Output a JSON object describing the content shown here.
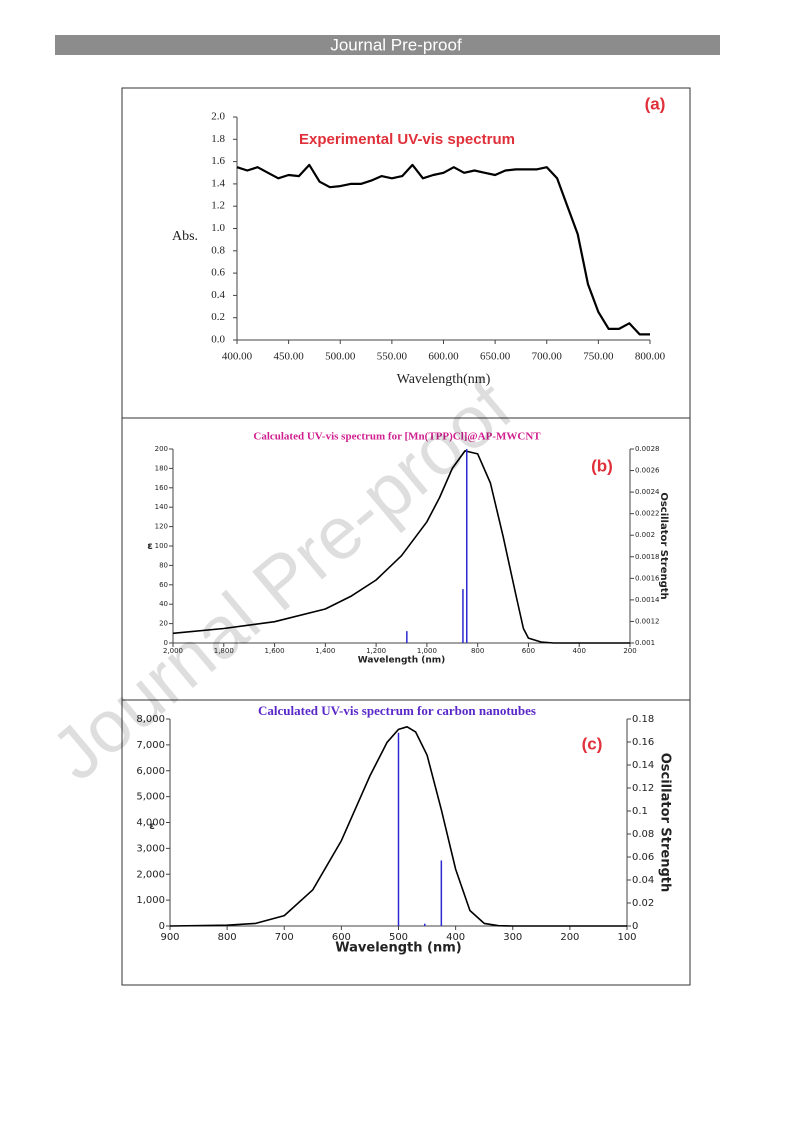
{
  "header": {
    "title": "Journal Pre-proof"
  },
  "watermark": "Journal Pre-proof",
  "chart_data": [
    {
      "type": "line",
      "title": "Experimental UV-vis spectrum",
      "title_color": "#e0303a",
      "panel_label": "(a)",
      "panel_label_color": "#e0303a",
      "x_label": "Wavelength(nm)",
      "y_label": "Abs.",
      "xlim": [
        400,
        800
      ],
      "xticks": [
        {
          "value": 400,
          "label": "400.00"
        },
        {
          "value": 450,
          "label": "450.00"
        },
        {
          "value": 500,
          "label": "500.00"
        },
        {
          "value": 550,
          "label": "550.00"
        },
        {
          "value": 600,
          "label": "600.00"
        },
        {
          "value": 650,
          "label": "650.00"
        },
        {
          "value": 700,
          "label": "700.00"
        },
        {
          "value": 750,
          "label": "750.00"
        },
        {
          "value": 800,
          "label": "800.00"
        }
      ],
      "ylim": [
        0,
        2
      ],
      "yticks": [
        {
          "value": 0,
          "label": "0.0"
        },
        0.2,
        0.4,
        0.6,
        0.8,
        {
          "value": 1,
          "label": "1.0"
        },
        1.2,
        1.4,
        1.6,
        1.8,
        {
          "value": 2,
          "label": "2.0"
        }
      ],
      "series": [
        {
          "color": "#000000",
          "style": "line",
          "x": [
            400,
            410,
            420,
            430,
            440,
            450,
            460,
            470,
            480,
            490,
            500,
            510,
            520,
            530,
            540,
            550,
            560,
            570,
            580,
            590,
            600,
            610,
            620,
            630,
            640,
            650,
            660,
            670,
            680,
            690,
            700,
            710,
            720,
            730,
            740,
            750,
            760,
            770,
            780,
            790,
            800
          ],
          "values": [
            1.55,
            1.52,
            1.55,
            1.5,
            1.45,
            1.48,
            1.47,
            1.57,
            1.42,
            1.37,
            1.38,
            1.4,
            1.4,
            1.43,
            1.47,
            1.45,
            1.47,
            1.57,
            1.45,
            1.48,
            1.5,
            1.55,
            1.5,
            1.52,
            1.5,
            1.48,
            1.52,
            1.53,
            1.53,
            1.53,
            1.55,
            1.45,
            1.2,
            0.95,
            0.5,
            0.25,
            0.1,
            0.1,
            0.15,
            0.05,
            0.05
          ]
        }
      ]
    },
    {
      "type": "line",
      "title": "Calculated UV-vis spectrum for [Mn(TPP)Cl]@AP-MWCNT",
      "title_color": "#d0208f",
      "panel_label": "(b)",
      "panel_label_color": "#e0303a",
      "x_label": "Wavelength (nm)",
      "y_label": "ε",
      "y2_label": "Oscillator Strength",
      "xlim": [
        2000,
        200
      ],
      "xticks": [
        {
          "value": 2000,
          "label": "2,000"
        },
        {
          "value": 1800,
          "label": "1,800"
        },
        {
          "value": 1600,
          "label": "1,600"
        },
        {
          "value": 1400,
          "label": "1,400"
        },
        {
          "value": 1200,
          "label": "1,200"
        },
        {
          "value": 1000,
          "label": "1,000"
        },
        800,
        600,
        400,
        200
      ],
      "ylim": [
        0,
        200
      ],
      "yticks": [
        0,
        20,
        40,
        60,
        80,
        100,
        120,
        140,
        160,
        180,
        200
      ],
      "y2lim": [
        0.001,
        0.0028
      ],
      "y2ticks": [
        0.001,
        0.0012,
        0.0014,
        0.0016,
        0.0018,
        0.002,
        0.0022,
        0.0024,
        0.0026,
        0.0028
      ],
      "series": [
        {
          "color": "#000000",
          "style": "line",
          "x": [
            2000,
            1800,
            1600,
            1400,
            1300,
            1200,
            1100,
            1000,
            950,
            900,
            850,
            800,
            750,
            700,
            650,
            620,
            600,
            550,
            500,
            400,
            200
          ],
          "values": [
            10,
            15,
            22,
            35,
            48,
            65,
            90,
            125,
            150,
            180,
            198,
            195,
            165,
            110,
            50,
            15,
            5,
            1,
            0,
            0,
            0
          ]
        },
        {
          "color": "#2a2ad0",
          "style": "stick",
          "axis": "y2",
          "x": [
            1079,
            858,
            843
          ],
          "values": [
            0.00111,
            0.0015,
            0.0028
          ]
        }
      ]
    },
    {
      "type": "line",
      "title": "Calculated UV-vis spectrum for carbon nanotubes",
      "title_color": "#5a28c8",
      "panel_label": "(c)",
      "panel_label_color": "#e0303a",
      "x_label": "Wavelength (nm)",
      "y_label": "ε",
      "y2_label": "Oscillator Strength",
      "xlim": [
        900,
        100
      ],
      "xticks": [
        900,
        800,
        700,
        600,
        500,
        400,
        300,
        200,
        100
      ],
      "ylim": [
        0,
        8000
      ],
      "yticks": [
        0,
        {
          "value": 1000,
          "label": "1,000"
        },
        {
          "value": 2000,
          "label": "2,000"
        },
        {
          "value": 3000,
          "label": "3,000"
        },
        {
          "value": 4000,
          "label": "4,000"
        },
        {
          "value": 5000,
          "label": "5,000"
        },
        {
          "value": 6000,
          "label": "6,000"
        },
        {
          "value": 7000,
          "label": "7,000"
        },
        {
          "value": 8000,
          "label": "8,000"
        }
      ],
      "y2lim": [
        0,
        0.18
      ],
      "y2ticks": [
        0,
        0.02,
        0.04,
        0.06,
        0.08,
        0.1,
        0.12,
        0.14,
        0.16,
        0.18
      ],
      "series": [
        {
          "color": "#000000",
          "style": "line",
          "x": [
            900,
            800,
            750,
            700,
            650,
            600,
            550,
            520,
            500,
            485,
            470,
            450,
            425,
            400,
            375,
            350,
            325,
            300,
            200,
            100
          ],
          "values": [
            0,
            30,
            100,
            400,
            1400,
            3300,
            5800,
            7100,
            7600,
            7700,
            7500,
            6600,
            4500,
            2200,
            600,
            100,
            10,
            0,
            0,
            0
          ]
        },
        {
          "color": "#2a2ad0",
          "style": "stick",
          "axis": "y2",
          "x": [
            500,
            454,
            425
          ],
          "values": [
            0.168,
            0.002,
            0.057
          ]
        }
      ]
    }
  ]
}
